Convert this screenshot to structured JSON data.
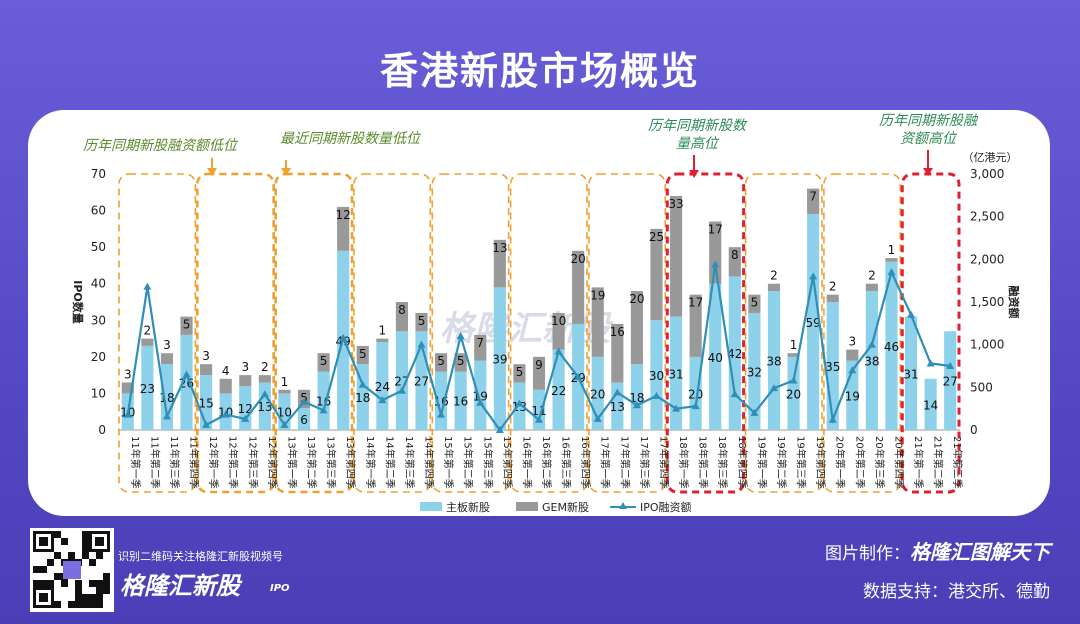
{
  "title": "香港新股市场概览",
  "chart_data": {
    "type": "bar",
    "categories": [
      "11年第一季",
      "11年第二季",
      "11年第三季",
      "11年第四季",
      "12年第一季",
      "12年第二季",
      "12年第三季",
      "12年第四季",
      "13年第一季",
      "13年第二季",
      "13年第三季",
      "13年第四季",
      "14年第一季",
      "14年第二季",
      "14年第三季",
      "14年第四季",
      "15年第一季",
      "15年第二季",
      "15年第三季",
      "15年第四季",
      "16年第一季",
      "16年第二季",
      "16年第三季",
      "16年第四季",
      "17年第一季",
      "17年第二季",
      "17年第三季",
      "17年第四季",
      "18年第一季",
      "18年第二季",
      "18年第三季",
      "18年第四季",
      "19年第一季",
      "19年第二季",
      "19年第三季",
      "19年第四季",
      "20年第一季",
      "20年第二季",
      "20年第三季",
      "20年第四季",
      "21年第一季",
      "21年第二季",
      "21年第三季"
    ],
    "series": [
      {
        "name": "主板新股",
        "values": [
          10,
          23,
          18,
          26,
          15,
          10,
          12,
          13,
          10,
          6,
          16,
          49,
          18,
          24,
          27,
          27,
          16,
          16,
          19,
          39,
          13,
          11,
          22,
          29,
          20,
          13,
          18,
          30,
          31,
          20,
          40,
          42,
          32,
          38,
          20,
          59,
          35,
          19,
          38,
          46,
          31,
          14,
          27
        ],
        "color": "#8ed1ea"
      },
      {
        "name": "GEM新股",
        "values": [
          3,
          2,
          3,
          5,
          3,
          4,
          3,
          2,
          1,
          5,
          5,
          12,
          5,
          1,
          8,
          5,
          5,
          5,
          7,
          13,
          5,
          9,
          10,
          20,
          19,
          16,
          20,
          25,
          33,
          17,
          17,
          8,
          5,
          2,
          1,
          7,
          2,
          3,
          2,
          1,
          0,
          0,
          0
        ],
        "color": "#999999"
      },
      {
        "name": "IPO融资额",
        "values": [
          180,
          1680,
          160,
          650,
          60,
          180,
          130,
          420,
          60,
          330,
          230,
          1080,
          530,
          350,
          460,
          1000,
          180,
          1100,
          320,
          0,
          310,
          120,
          920,
          620,
          130,
          440,
          290,
          400,
          250,
          280,
          1940,
          420,
          200,
          490,
          580,
          1800,
          120,
          700,
          1000,
          1850,
          1350,
          780,
          750
        ],
        "color": "#2f8fb6",
        "type": "line"
      }
    ],
    "gem_labels": [
      "3",
      "2",
      "3",
      "5",
      "3",
      "4",
      "3",
      "2",
      "1",
      "5",
      "5",
      "12",
      "5",
      "1",
      "8",
      "5",
      "5",
      "5",
      "7",
      "13",
      "5",
      "9",
      "10",
      "20",
      "19",
      "16",
      "20",
      "25",
      "33",
      "17",
      "17",
      "8",
      "5",
      "2",
      "1",
      "7",
      "2",
      "3",
      "2",
      "1",
      "",
      "",
      ""
    ],
    "ylabel": "IPO数量",
    "y2label": "融资额",
    "y2unit": "（亿港元）",
    "ylim": [
      0,
      70
    ],
    "y2lim": [
      0,
      3000
    ],
    "yticks": [
      "0",
      "10",
      "20",
      "30",
      "40",
      "50",
      "60",
      "70"
    ],
    "y2ticks": [
      "0",
      "500",
      "1,000",
      "1,500",
      "2,000",
      "2,500",
      "3,000"
    ],
    "legend": [
      "主板新股",
      "GEM新股",
      "IPO融资额"
    ],
    "legend_position": "bottom",
    "annotations": [
      {
        "text": "历年同期新股融资额低位",
        "color": "#5a8a2a"
      },
      {
        "text": "最近同期新股数量低位",
        "color": "#5a8a2a"
      },
      {
        "text": "历年同期新股数量高位",
        "color": "#2e8b57"
      },
      {
        "text": "历年同期新股融资额高位",
        "color": "#2e8b57"
      }
    ],
    "watermark": "格隆汇新股"
  },
  "footer": {
    "scan_text": "识别二维码关注格隆汇新股视频号",
    "brand": "格隆汇新股",
    "brand_suffix": "IPO",
    "credit_label": "图片制作：",
    "credit_name": "格隆汇图解天下",
    "source": "数据支持：港交所、德勤"
  }
}
